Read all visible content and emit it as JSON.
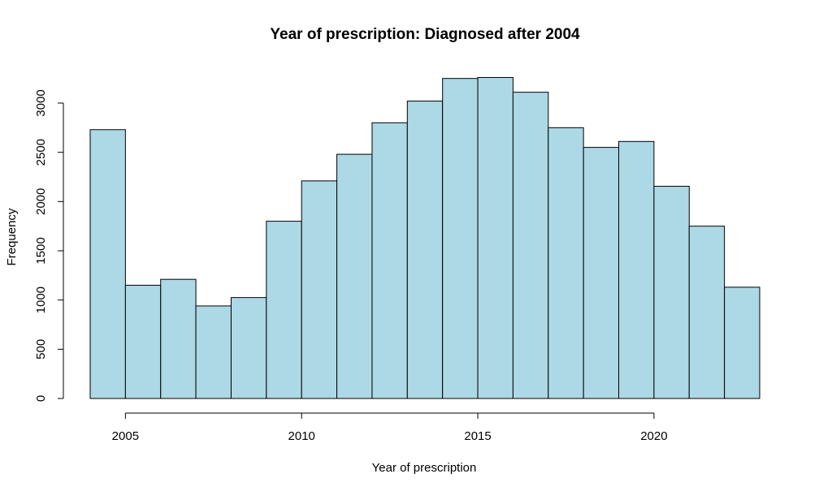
{
  "chart_data": {
    "type": "bar",
    "title": "Year of prescription: Diagnosed after 2004",
    "xlabel": "Year of prescription",
    "ylabel": "Frequency",
    "bin_width": 1,
    "bin_edges": [
      2004,
      2005,
      2006,
      2007,
      2008,
      2009,
      2010,
      2011,
      2012,
      2013,
      2014,
      2015,
      2016,
      2017,
      2018,
      2019,
      2020,
      2021,
      2022,
      2023
    ],
    "values": [
      2730,
      1150,
      1210,
      940,
      1025,
      1800,
      2210,
      2480,
      2800,
      3020,
      3250,
      3260,
      3110,
      2750,
      2550,
      2610,
      2155,
      1750,
      1130
    ],
    "xlim": [
      2004,
      2023
    ],
    "ylim": [
      0,
      3000
    ],
    "x_ticks": [
      "2005",
      "2010",
      "2015",
      "2020"
    ],
    "y_ticks": [
      "0",
      "500",
      "1000",
      "1500",
      "2000",
      "2500",
      "3000"
    ],
    "bar_color": "#add8e6",
    "border_color": "#000000",
    "grid": false,
    "legend": "none"
  }
}
